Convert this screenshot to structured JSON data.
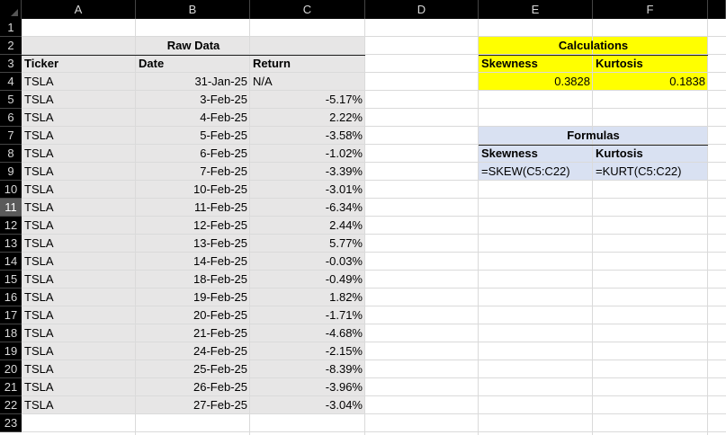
{
  "columns": [
    "A",
    "B",
    "C",
    "D",
    "E",
    "F"
  ],
  "rows": [
    "1",
    "2",
    "3",
    "4",
    "5",
    "6",
    "7",
    "8",
    "9",
    "10",
    "11",
    "12",
    "13",
    "14",
    "15",
    "16",
    "17",
    "18",
    "19",
    "20",
    "21",
    "22",
    "23"
  ],
  "selected_row": "11",
  "raw_data": {
    "title": "Raw Data",
    "headers": {
      "ticker": "Ticker",
      "date": "Date",
      "return": "Return"
    },
    "rows": [
      {
        "ticker": "TSLA",
        "date": "31-Jan-25",
        "return": "N/A"
      },
      {
        "ticker": "TSLA",
        "date": "3-Feb-25",
        "return": "-5.17%"
      },
      {
        "ticker": "TSLA",
        "date": "4-Feb-25",
        "return": "2.22%"
      },
      {
        "ticker": "TSLA",
        "date": "5-Feb-25",
        "return": "-3.58%"
      },
      {
        "ticker": "TSLA",
        "date": "6-Feb-25",
        "return": "-1.02%"
      },
      {
        "ticker": "TSLA",
        "date": "7-Feb-25",
        "return": "-3.39%"
      },
      {
        "ticker": "TSLA",
        "date": "10-Feb-25",
        "return": "-3.01%"
      },
      {
        "ticker": "TSLA",
        "date": "11-Feb-25",
        "return": "-6.34%"
      },
      {
        "ticker": "TSLA",
        "date": "12-Feb-25",
        "return": "2.44%"
      },
      {
        "ticker": "TSLA",
        "date": "13-Feb-25",
        "return": "5.77%"
      },
      {
        "ticker": "TSLA",
        "date": "14-Feb-25",
        "return": "-0.03%"
      },
      {
        "ticker": "TSLA",
        "date": "18-Feb-25",
        "return": "-0.49%"
      },
      {
        "ticker": "TSLA",
        "date": "19-Feb-25",
        "return": "1.82%"
      },
      {
        "ticker": "TSLA",
        "date": "20-Feb-25",
        "return": "-1.71%"
      },
      {
        "ticker": "TSLA",
        "date": "21-Feb-25",
        "return": "-4.68%"
      },
      {
        "ticker": "TSLA",
        "date": "24-Feb-25",
        "return": "-2.15%"
      },
      {
        "ticker": "TSLA",
        "date": "25-Feb-25",
        "return": "-8.39%"
      },
      {
        "ticker": "TSLA",
        "date": "26-Feb-25",
        "return": "-3.96%"
      },
      {
        "ticker": "TSLA",
        "date": "27-Feb-25",
        "return": "-3.04%"
      }
    ],
    "fill_color": "#e7e6e6"
  },
  "calculations": {
    "title": "Calculations",
    "skewness_label": "Skewness",
    "kurtosis_label": "Kurtosis",
    "skewness_value": "0.3828",
    "kurtosis_value": "0.1838",
    "fill_color": "#ffff00"
  },
  "formulas": {
    "title": "Formulas",
    "skewness_label": "Skewness",
    "kurtosis_label": "Kurtosis",
    "skewness_formula": "=SKEW(C5:C22)",
    "kurtosis_formula": "=KURT(C5:C22)",
    "fill_color": "#d9e1f2"
  }
}
